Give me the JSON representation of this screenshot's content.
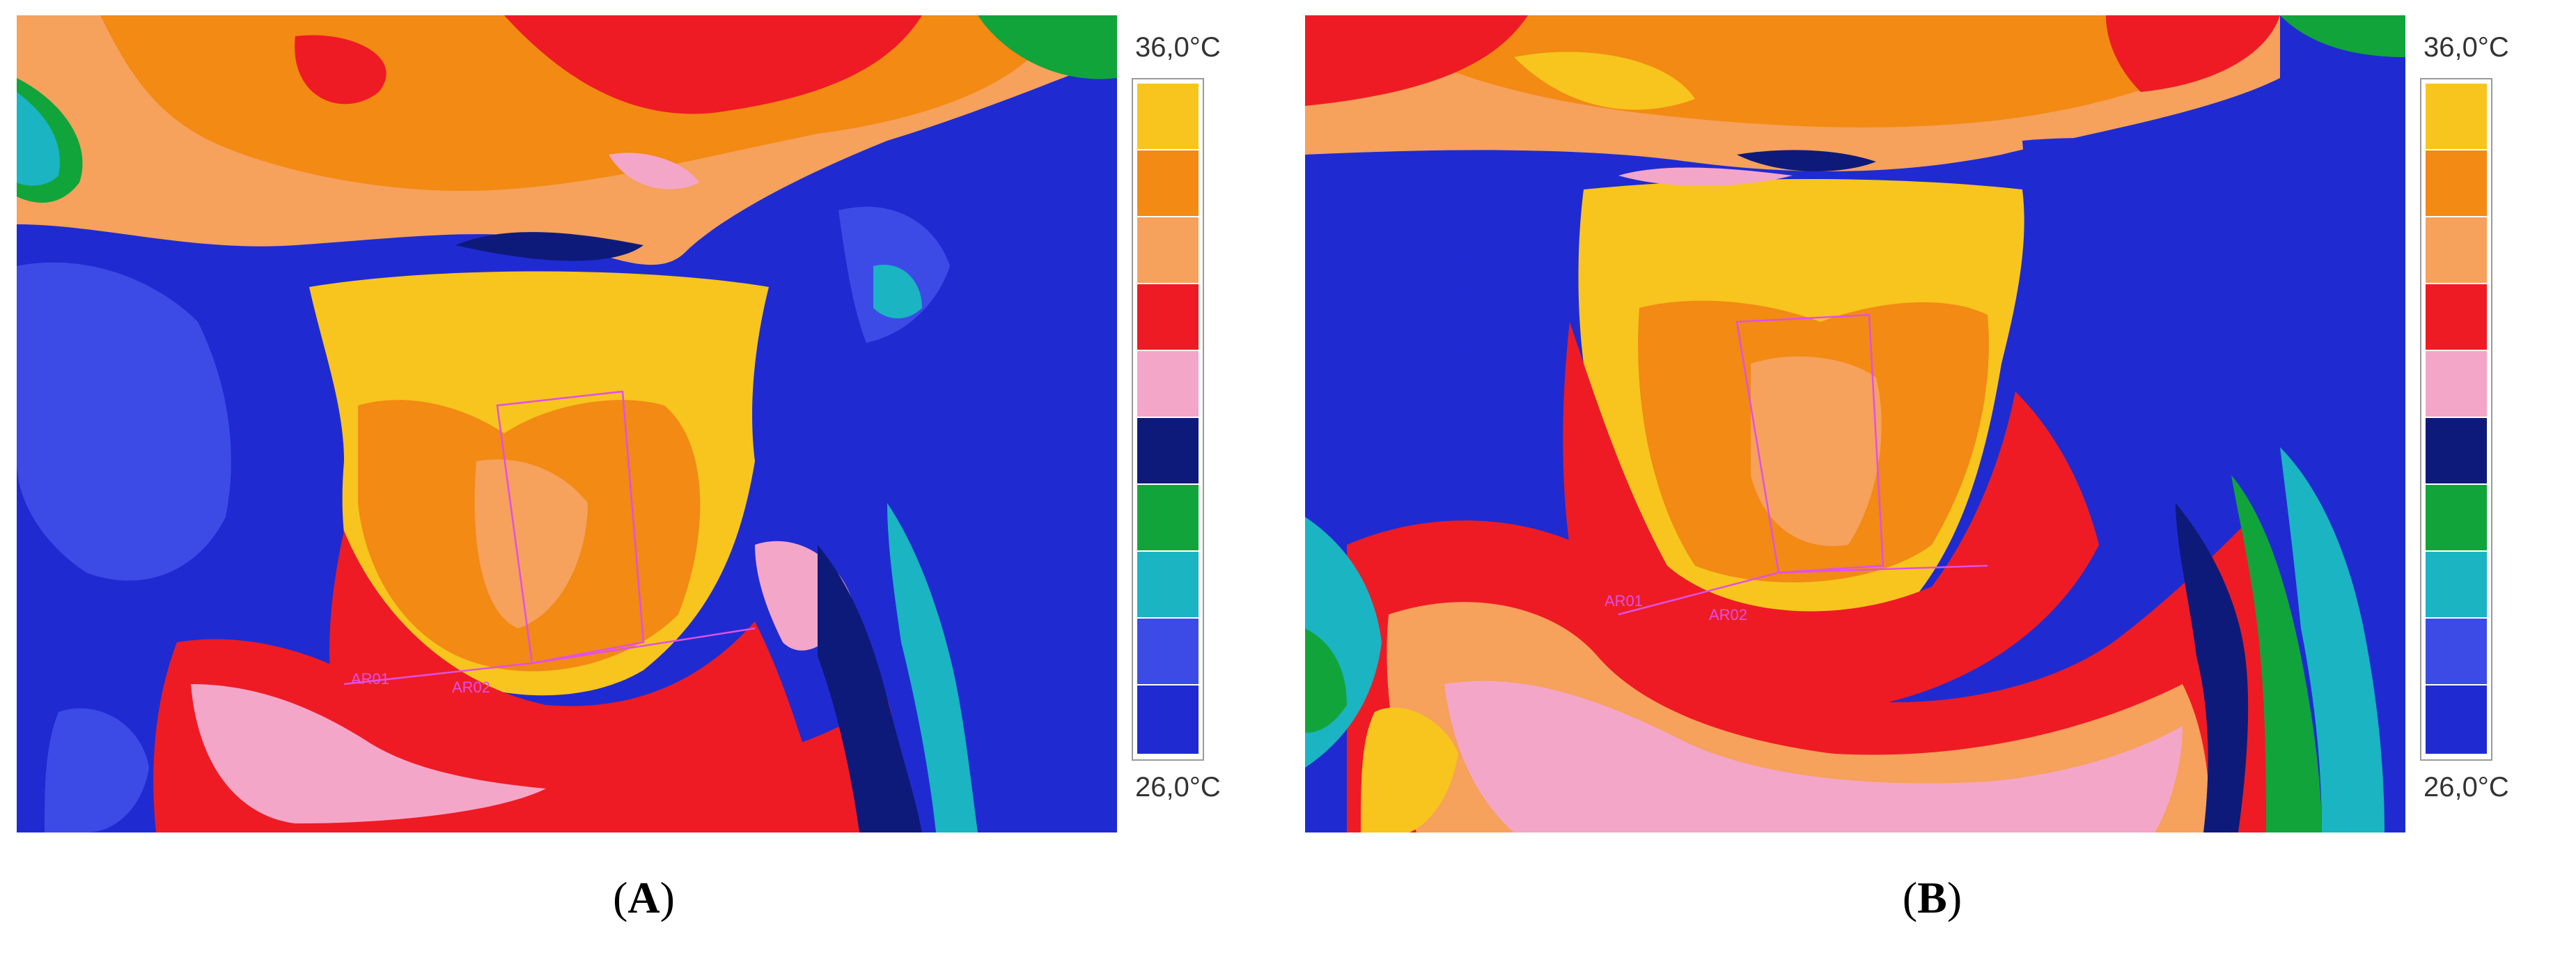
{
  "panels": [
    {
      "caption_open": "(",
      "caption_letter": "A",
      "caption_close": ")",
      "scale_max": "36,0°C",
      "scale_min": "26,0°C",
      "roi_labels": [
        "AR01",
        "AR02"
      ]
    },
    {
      "caption_open": "(",
      "caption_letter": "B",
      "caption_close": ")",
      "scale_max": "36,0°C",
      "scale_min": "26,0°C",
      "roi_labels": [
        "AR01",
        "AR02"
      ]
    }
  ],
  "palette": {
    "levels_top_to_bottom": [
      "#f7c51e",
      "#f28a13",
      "#f6a15c",
      "#ee1b24",
      "#f4a6c8",
      "#0e1a7a",
      "#11a43b",
      "#1ab4c3",
      "#3c4be6",
      "#1f2bd1"
    ],
    "roi_color": "#e050e8"
  }
}
